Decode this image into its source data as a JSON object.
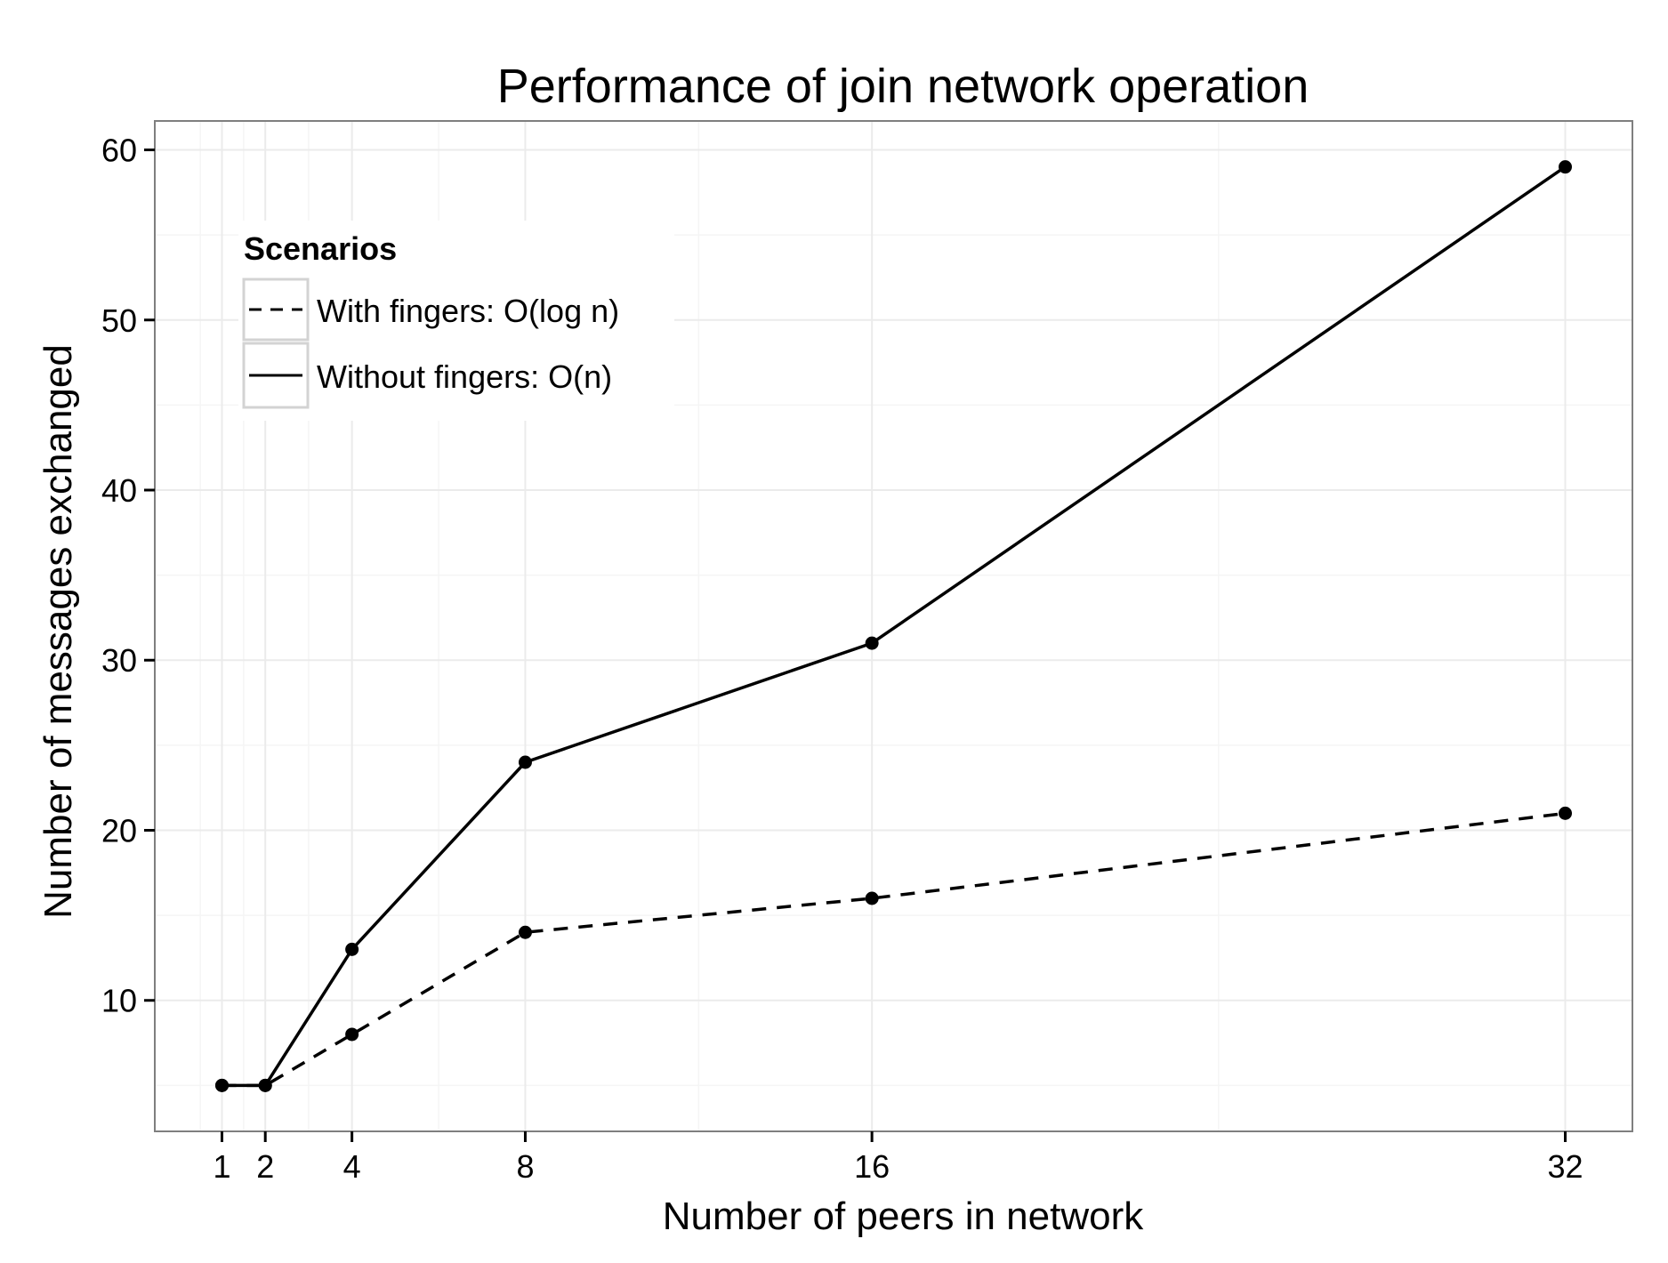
{
  "chart_data": {
    "type": "line",
    "title": "Performance of join network operation",
    "xlabel": "Number of peers in network",
    "ylabel": "Number of messages exchanged",
    "x": [
      1,
      2,
      4,
      8,
      16,
      32
    ],
    "x_ticks": [
      1,
      2,
      4,
      8,
      16,
      32
    ],
    "x_tick_labels": [
      "1",
      "2",
      "4",
      "8",
      "16",
      "32"
    ],
    "y_ticks": [
      10,
      20,
      30,
      40,
      50,
      60
    ],
    "y_tick_labels": [
      "10",
      "20",
      "30",
      "40",
      "50",
      "60"
    ],
    "xlim": [
      -0.55,
      33.55
    ],
    "ylim": [
      2.3,
      61.7
    ],
    "grid": true,
    "legend": {
      "title": "Scenarios",
      "position": "top-left"
    },
    "series": [
      {
        "name": "With fingers: O(log n)",
        "line_style": "dashed",
        "color": "#000000",
        "values": [
          5,
          5,
          8,
          14,
          16,
          21
        ]
      },
      {
        "name": "Without fingers: O(n)",
        "line_style": "solid",
        "color": "#000000",
        "values": [
          5,
          5,
          13,
          24,
          31,
          59
        ]
      }
    ],
    "colors": {
      "background": "#ffffff",
      "panel_border": "#7f7f7f",
      "grid_major": "#ebebeb",
      "grid_minor": "#f5f5f5",
      "series": "#000000"
    }
  }
}
